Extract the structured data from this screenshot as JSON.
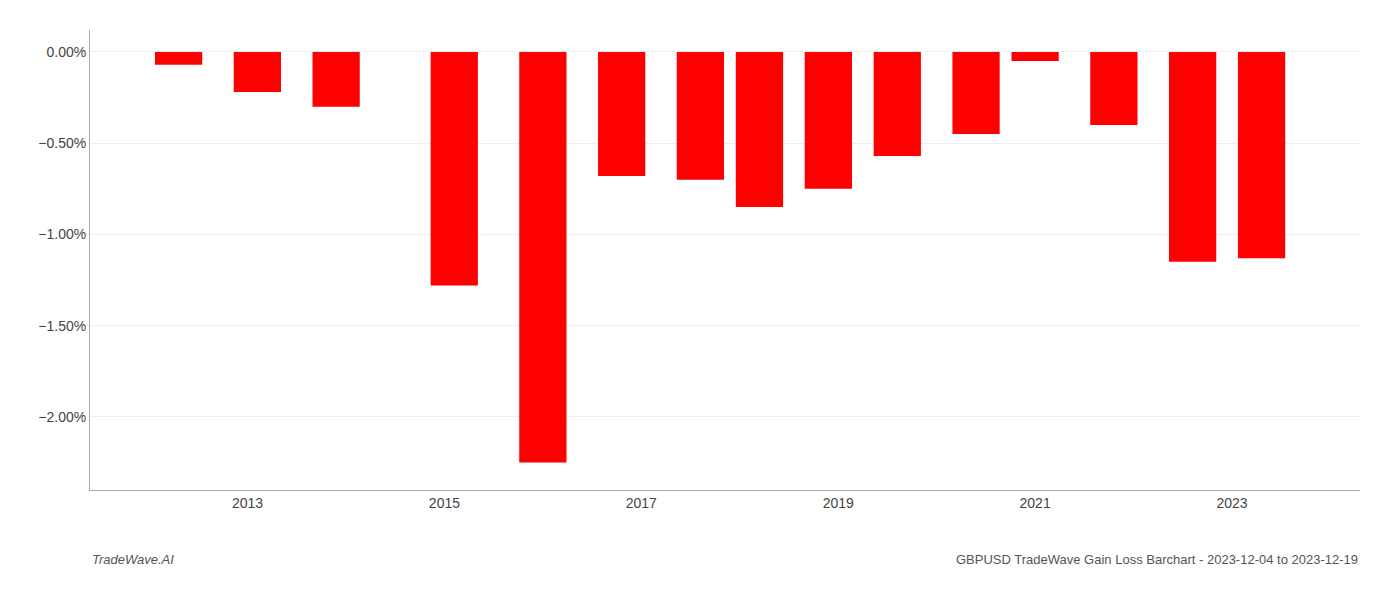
{
  "chart_data": {
    "type": "bar",
    "x": [
      2012.3,
      2013.1,
      2013.9,
      2015.1,
      2016.0,
      2016.8,
      2017.6,
      2018.2,
      2018.9,
      2019.6,
      2020.4,
      2021.0,
      2021.8,
      2022.6,
      2023.3
    ],
    "values": [
      -0.07,
      -0.22,
      -0.3,
      -1.28,
      -2.25,
      -0.68,
      -0.7,
      -0.85,
      -0.75,
      -0.57,
      -0.45,
      -0.05,
      -0.4,
      -1.15,
      -1.13
    ],
    "color": "#ff0000",
    "xlim": [
      2011.4,
      2024.3
    ],
    "xticks": [
      2013,
      2015,
      2017,
      2019,
      2021,
      2023
    ],
    "ylim": [
      -2.4,
      0.12
    ],
    "yticks": [
      {
        "value": 0.0,
        "label": "0.00%"
      },
      {
        "value": -0.5,
        "label": "−0.50%"
      },
      {
        "value": -1.0,
        "label": "−1.00%"
      },
      {
        "value": -1.5,
        "label": "−1.50%"
      },
      {
        "value": -2.0,
        "label": "−2.00%"
      }
    ],
    "grid": true,
    "annotations": [
      "TradeWave.AI",
      "GBPUSD TradeWave Gain Loss Barchart - 2023-12-04 to 2023-12-19"
    ]
  }
}
